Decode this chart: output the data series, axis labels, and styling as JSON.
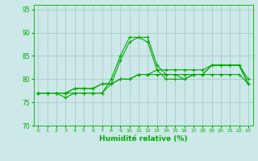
{
  "background_color": "#cce8e8",
  "grid_color": "#aacccc",
  "line_color": "#00aa00",
  "xlabel": "Humidité relative (%)",
  "ylim": [
    70,
    96
  ],
  "xlim": [
    -0.5,
    23.5
  ],
  "yticks": [
    70,
    75,
    80,
    85,
    90,
    95
  ],
  "xticks": [
    0,
    1,
    2,
    3,
    4,
    5,
    6,
    7,
    8,
    9,
    10,
    11,
    12,
    13,
    14,
    15,
    16,
    17,
    18,
    19,
    20,
    21,
    22,
    23
  ],
  "xtick_labels": [
    "0",
    "1",
    "2",
    "3",
    "4",
    "5",
    "6",
    "7",
    "8",
    "9",
    "10",
    "11",
    "12",
    "13",
    "14",
    "15",
    "16",
    "17",
    "18",
    "19",
    "20",
    "21",
    "22",
    "23"
  ],
  "series": [
    [
      77,
      77,
      77,
      77,
      77,
      77,
      77,
      77,
      80,
      85,
      89,
      89,
      89,
      83,
      81,
      81,
      80,
      81,
      81,
      83,
      83,
      83,
      83,
      79
    ],
    [
      77,
      77,
      77,
      76,
      77,
      77,
      77,
      77,
      79,
      84,
      88,
      89,
      88,
      82,
      80,
      80,
      80,
      81,
      81,
      83,
      83,
      83,
      83,
      79
    ],
    [
      77,
      77,
      77,
      77,
      78,
      78,
      78,
      79,
      79,
      80,
      80,
      81,
      81,
      81,
      81,
      81,
      81,
      81,
      81,
      81,
      81,
      81,
      81,
      79
    ],
    [
      77,
      77,
      77,
      77,
      78,
      78,
      78,
      79,
      79,
      80,
      80,
      81,
      81,
      82,
      82,
      82,
      82,
      82,
      82,
      83,
      83,
      83,
      83,
      80
    ]
  ]
}
